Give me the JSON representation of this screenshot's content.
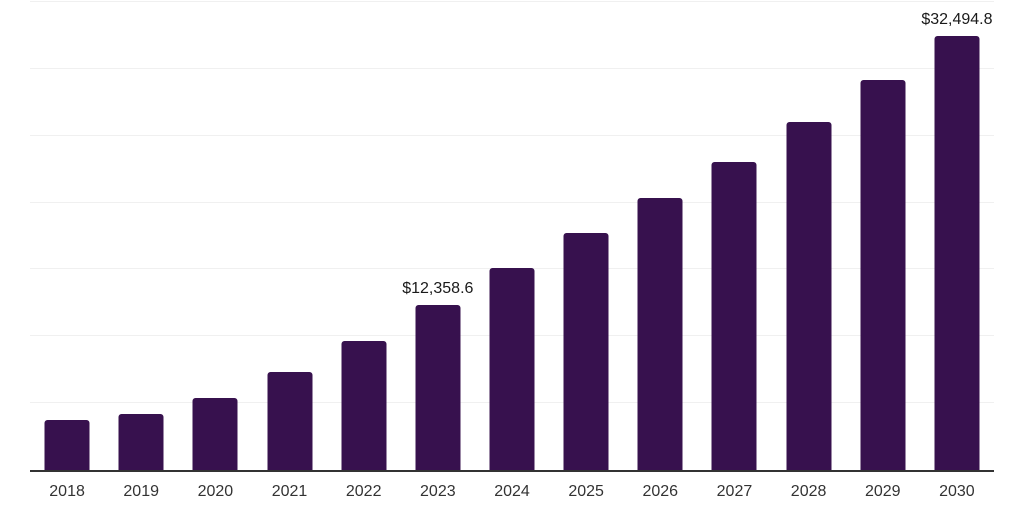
{
  "chart_data": {
    "type": "bar",
    "title": "",
    "xlabel": "",
    "ylabel": "",
    "categories": [
      "2018",
      "2019",
      "2020",
      "2021",
      "2022",
      "2023",
      "2024",
      "2025",
      "2026",
      "2027",
      "2028",
      "2029",
      "2030"
    ],
    "values": [
      3760,
      4190,
      5390,
      7350,
      9630,
      12358.6,
      15080,
      17700,
      20340,
      23060,
      26030,
      29170,
      32494.8
    ],
    "data_labels": [
      "",
      "",
      "",
      "",
      "",
      "$12,358.6",
      "",
      "",
      "",
      "",
      "",
      "",
      "$32,494.8"
    ],
    "ylim": [
      0,
      35000
    ],
    "gridline_step": 5000,
    "grid": "horizontal-only",
    "legend": "none",
    "y_axis_tick_labels": "none",
    "bar_color": "#37114E",
    "gridline_color": "#f0f0f0",
    "axis_line_color": "#333333",
    "label_color": "#1a1a1a",
    "tick_label_color": "#333333",
    "background_color": "#ffffff"
  }
}
